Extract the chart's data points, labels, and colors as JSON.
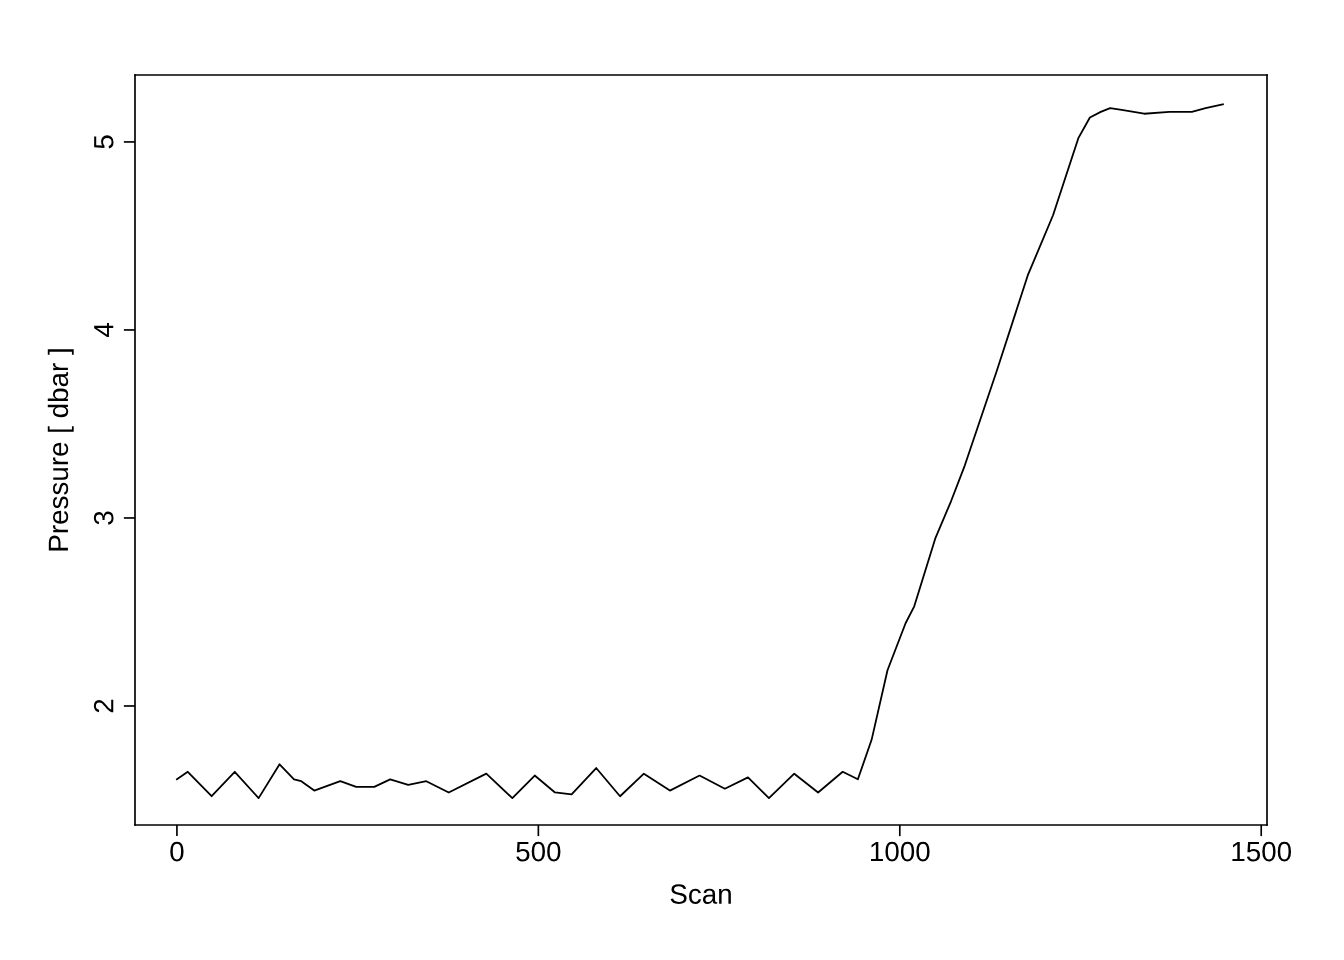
{
  "chart_data": {
    "type": "line",
    "xlabel": "Scan",
    "ylabel": "Pressure [ dbar ]",
    "x": [
      0,
      15,
      48,
      80,
      113,
      142,
      162,
      172,
      190,
      226,
      248,
      273,
      295,
      320,
      345,
      376,
      428,
      464,
      495,
      523,
      546,
      580,
      613,
      646,
      682,
      723,
      758,
      790,
      819,
      854,
      887,
      921,
      942,
      961,
      983,
      1008,
      1020,
      1049,
      1071,
      1090,
      1134,
      1177,
      1212,
      1247,
      1263,
      1278,
      1291,
      1307,
      1338,
      1373,
      1404,
      1423,
      1447
    ],
    "series": [
      {
        "color": "#000000",
        "values": [
          1.61,
          1.65,
          1.52,
          1.65,
          1.51,
          1.69,
          1.61,
          1.6,
          1.55,
          1.6,
          1.57,
          1.57,
          1.61,
          1.58,
          1.6,
          1.54,
          1.64,
          1.51,
          1.63,
          1.54,
          1.53,
          1.67,
          1.52,
          1.64,
          1.55,
          1.63,
          1.56,
          1.62,
          1.51,
          1.64,
          1.54,
          1.65,
          1.61,
          1.82,
          2.19,
          2.44,
          2.53,
          2.89,
          3.09,
          3.28,
          3.78,
          4.29,
          4.61,
          5.02,
          5.13,
          5.16,
          5.18,
          5.17,
          5.15,
          5.16,
          5.16,
          5.18,
          5.2
        ]
      }
    ],
    "xlim": [
      -58,
      1508
    ],
    "ylim": [
      1.367,
      5.356
    ],
    "xticks": [
      0,
      500,
      1000,
      1500
    ],
    "yticks": [
      2,
      3,
      4,
      5
    ],
    "grid": false,
    "legend": false,
    "marker": "none",
    "line_style": "solid"
  }
}
